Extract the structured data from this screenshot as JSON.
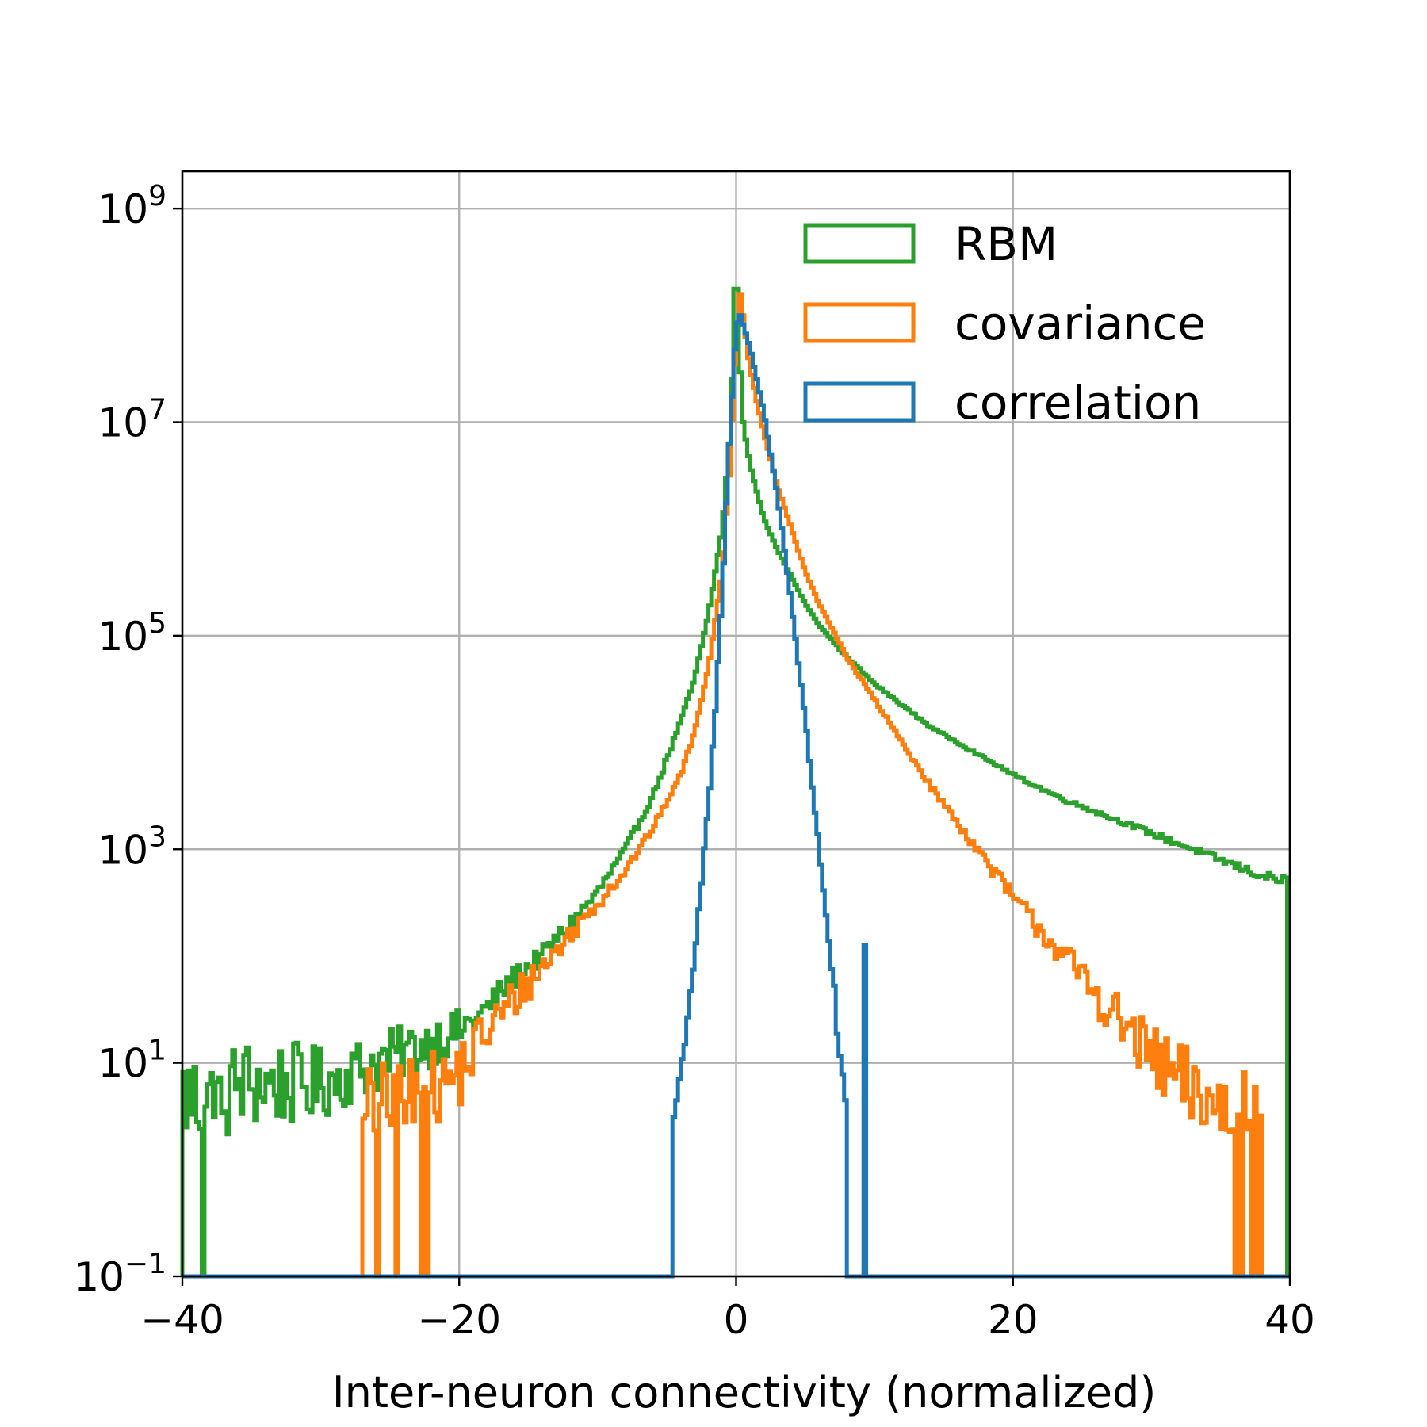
{
  "chart_data": {
    "type": "step-histogram",
    "xlabel": "Inter-neuron connectivity (normalized)",
    "ylabel": "",
    "xlim": [
      -40,
      40
    ],
    "ylim_log10": [
      -1,
      9.35
    ],
    "y_scale": "log",
    "grid": true,
    "legend_position": "top-right",
    "x_ticks": [
      {
        "value": -40,
        "label": "−40"
      },
      {
        "value": -20,
        "label": "−20"
      },
      {
        "value": 0,
        "label": "0"
      },
      {
        "value": 20,
        "label": "20"
      },
      {
        "value": 40,
        "label": "40"
      }
    ],
    "y_ticks": [
      {
        "exp": -1,
        "base": "10",
        "sup": "−1"
      },
      {
        "exp": 1,
        "base": "10",
        "sup": "1"
      },
      {
        "exp": 3,
        "base": "10",
        "sup": "3"
      },
      {
        "exp": 5,
        "base": "10",
        "sup": "5"
      },
      {
        "exp": 7,
        "base": "10",
        "sup": "7"
      },
      {
        "exp": 9,
        "base": "10",
        "sup": "9"
      }
    ],
    "series": [
      {
        "name": "RBM",
        "color": "#2ca02c",
        "x": [
          -39.9,
          -38,
          -36,
          -34,
          -32,
          -30,
          -28,
          -26,
          -24,
          -22,
          -20,
          -18,
          -16,
          -14,
          -12,
          -10,
          -8,
          -6,
          -4,
          -3,
          -2,
          -1,
          -0.5,
          -0.2,
          0,
          0.2,
          0.5,
          1,
          2,
          3,
          4,
          5,
          6,
          8,
          10,
          12,
          14,
          16,
          18,
          20,
          22,
          24,
          26,
          28,
          30,
          32,
          34,
          36,
          38,
          39.9
        ],
        "log10": [
          0.7,
          0.6,
          0.8,
          0.8,
          0.8,
          0.8,
          0.9,
          1.0,
          1.1,
          1.2,
          1.3,
          1.5,
          1.8,
          2.0,
          2.3,
          2.6,
          3.0,
          3.5,
          4.2,
          4.6,
          5.2,
          6.0,
          6.8,
          7.7,
          8.8,
          7.7,
          7.0,
          6.6,
          6.1,
          5.8,
          5.55,
          5.3,
          5.1,
          4.8,
          4.55,
          4.35,
          4.15,
          4.0,
          3.85,
          3.7,
          3.57,
          3.45,
          3.35,
          3.25,
          3.15,
          3.05,
          2.95,
          2.85,
          2.75,
          2.7
        ],
        "noise_amp": [
          0.5,
          0.5,
          0.45,
          0.4,
          0.4,
          0.35,
          0.3,
          0.3,
          0.25,
          0.25,
          0.2,
          0.15,
          0.12,
          0.1,
          0.08,
          0.06,
          0.04,
          0.03,
          0.02,
          0.01,
          0.01,
          0.0,
          0.0,
          0.0,
          0.0,
          0.0,
          0.0,
          0.0,
          0.0,
          0.0,
          0.0,
          0.0,
          0.0,
          0.01,
          0.01,
          0.01,
          0.01,
          0.01,
          0.01,
          0.01,
          0.02,
          0.02,
          0.02,
          0.02,
          0.03,
          0.03,
          0.03,
          0.04,
          0.04,
          0.05
        ]
      },
      {
        "name": "covariance",
        "color": "#ff7f0e",
        "x": [
          -27,
          -26,
          -24,
          -22,
          -20,
          -18,
          -16,
          -14,
          -12,
          -10,
          -8,
          -6,
          -4,
          -3,
          -2,
          -1,
          -0.5,
          0,
          0.3,
          1,
          2,
          3,
          4,
          5,
          6,
          8,
          10,
          12,
          14,
          16,
          18,
          20,
          22,
          24,
          26,
          28,
          30,
          32,
          34,
          36,
          38
        ],
        "log10": [
          0.5,
          0.5,
          0.6,
          0.7,
          0.9,
          1.3,
          1.6,
          1.9,
          2.2,
          2.5,
          2.8,
          3.2,
          3.7,
          4.1,
          4.7,
          5.6,
          6.5,
          7.8,
          8.2,
          7.5,
          6.9,
          6.4,
          6.0,
          5.6,
          5.3,
          4.8,
          4.4,
          4.0,
          3.6,
          3.25,
          2.9,
          2.55,
          2.25,
          1.95,
          1.65,
          1.35,
          1.05,
          0.8,
          0.6,
          0.5,
          0.3
        ],
        "noise_amp": [
          0.5,
          0.5,
          0.45,
          0.4,
          0.35,
          0.25,
          0.2,
          0.15,
          0.1,
          0.08,
          0.05,
          0.03,
          0.02,
          0.01,
          0.0,
          0.0,
          0.0,
          0.0,
          0.0,
          0.0,
          0.0,
          0.0,
          0.0,
          0.0,
          0.0,
          0.01,
          0.02,
          0.02,
          0.03,
          0.04,
          0.06,
          0.08,
          0.12,
          0.15,
          0.2,
          0.25,
          0.3,
          0.4,
          0.45,
          0.5,
          0.5
        ]
      },
      {
        "name": "correlation",
        "color": "#1f77b4",
        "x": [
          -4.5,
          -4,
          -3,
          -2,
          -1.5,
          -1,
          -0.5,
          0,
          0.3,
          1,
          2,
          3,
          4,
          5,
          6,
          7,
          7.5,
          8
        ],
        "log10": [
          0.5,
          0.9,
          2.0,
          3.4,
          4.3,
          5.4,
          6.8,
          7.9,
          8.0,
          7.7,
          7.1,
          6.3,
          5.3,
          4.2,
          3.0,
          1.8,
          1.0,
          0.5
        ],
        "noise_amp": [
          0.1,
          0.08,
          0.05,
          0.03,
          0.02,
          0.01,
          0.0,
          0.0,
          0.0,
          0.0,
          0.0,
          0.01,
          0.02,
          0.03,
          0.05,
          0.08,
          0.1,
          0.1
        ],
        "isolated_bars": [
          {
            "x": 9.3,
            "log10": 2.1
          }
        ]
      }
    ]
  }
}
